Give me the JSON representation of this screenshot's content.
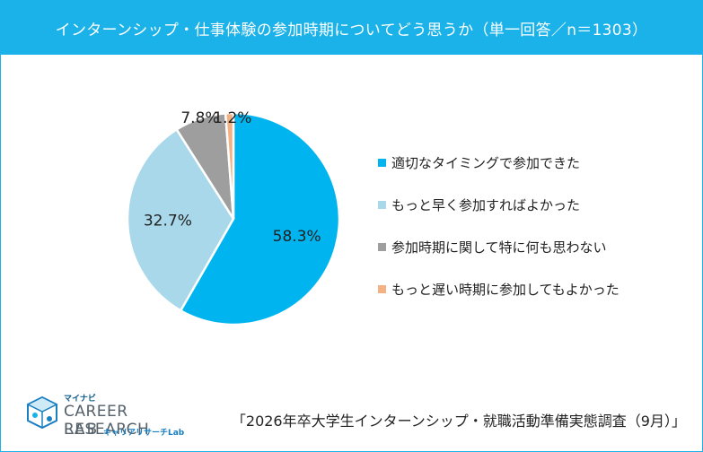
{
  "title": "インターンシップ・仕事体験の参加時期についてどう思うか（単一回答／n＝1303）",
  "chart_data": {
    "type": "pie",
    "title": "インターンシップ・仕事体験の参加時期についてどう思うか（単一回答／n＝1303）",
    "slices": [
      {
        "label": "適切なタイミングで参加できた",
        "value": 58.3,
        "display": "58.3%",
        "color": "#00b5ef"
      },
      {
        "label": "もっと早く参加すればよかった",
        "value": 32.7,
        "display": "32.7%",
        "color": "#a8d8ea"
      },
      {
        "label": "参加時期に関して特に何も思わない",
        "value": 7.8,
        "display": "7.8%",
        "color": "#9e9e9e"
      },
      {
        "label": "もっと遅い時期に参加してもよかった",
        "value": 1.2,
        "display": "1.2%",
        "color": "#f4b183"
      }
    ],
    "legend_position": "right"
  },
  "logo": {
    "top_text": "マイナビ",
    "main_text": "CAREER RESEARCH",
    "lab_text": "LAB",
    "sub_text": "キャリアリサーチLab"
  },
  "source": "「2026年卒大学生インターンシップ・就職活動準備実態調査（9月）」"
}
